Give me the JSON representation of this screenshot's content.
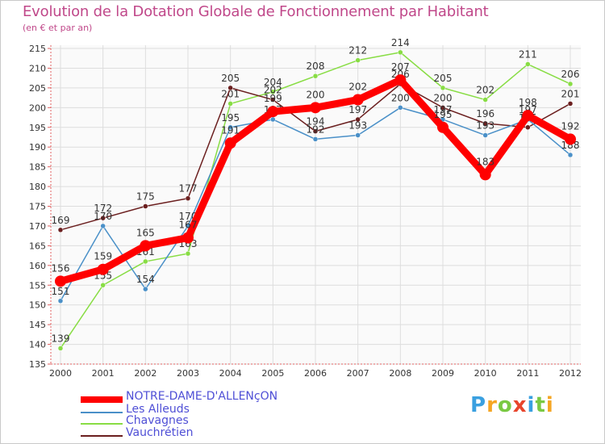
{
  "title": "Evolution de la Dotation Globale de Fonctionnement par Habitant",
  "subtitle": "(en € et par an)",
  "logo": "Proxiti",
  "chart_data": {
    "type": "line",
    "x": [
      "2000",
      "2001",
      "2002",
      "2003",
      "2004",
      "2005",
      "2006",
      "2007",
      "2008",
      "2009",
      "2010",
      "2011",
      "2012"
    ],
    "ylim": [
      135,
      215
    ],
    "yticks": [
      135,
      140,
      145,
      150,
      155,
      160,
      165,
      170,
      175,
      180,
      185,
      190,
      195,
      200,
      205,
      210,
      215
    ],
    "grid": true,
    "series": [
      {
        "name": "NOTRE-DAME-D'ALLENçON",
        "color": "#ff0000",
        "values": [
          156,
          159,
          165,
          167,
          191,
          199,
          200,
          202,
          207,
          195,
          183,
          198,
          192
        ]
      },
      {
        "name": "Les Alleuds",
        "color": "#4a90c8",
        "values": [
          151,
          170,
          154,
          170,
          195,
          197,
          192,
          193,
          200,
          197,
          193,
          197,
          188
        ]
      },
      {
        "name": "Chavagnes",
        "color": "#88dd44",
        "values": [
          139,
          155,
          161,
          163,
          201,
          204,
          208,
          212,
          214,
          205,
          202,
          211,
          206
        ]
      },
      {
        "name": "Vauchrétien",
        "color": "#6b1f1f",
        "values": [
          169,
          172,
          175,
          177,
          205,
          202,
          194,
          197,
          206,
          200,
          196,
          195,
          201
        ]
      }
    ]
  }
}
